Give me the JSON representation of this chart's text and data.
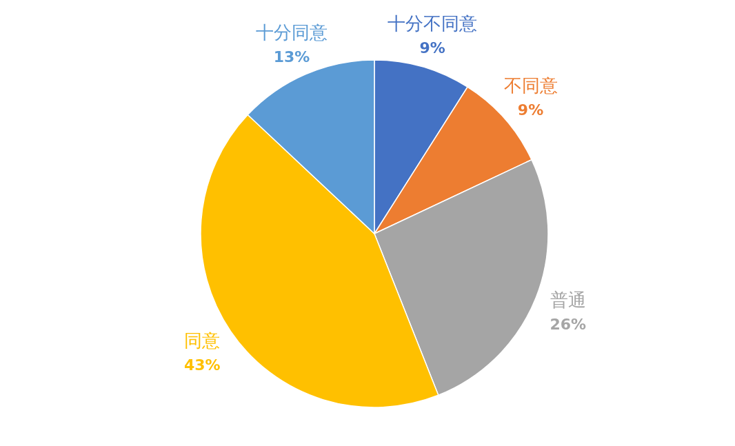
{
  "chart_data": {
    "type": "pie",
    "categories": [
      "十分不同意",
      "不同意",
      "普通",
      "同意",
      "十分同意"
    ],
    "values": [
      9,
      9,
      26,
      43,
      13
    ],
    "colors": [
      "#4472c4",
      "#ed7d31",
      "#a5a5a5",
      "#ffc000",
      "#5b9bd5"
    ],
    "value_labels": [
      "9%",
      "9%",
      "26%",
      "43%",
      "13%"
    ]
  }
}
